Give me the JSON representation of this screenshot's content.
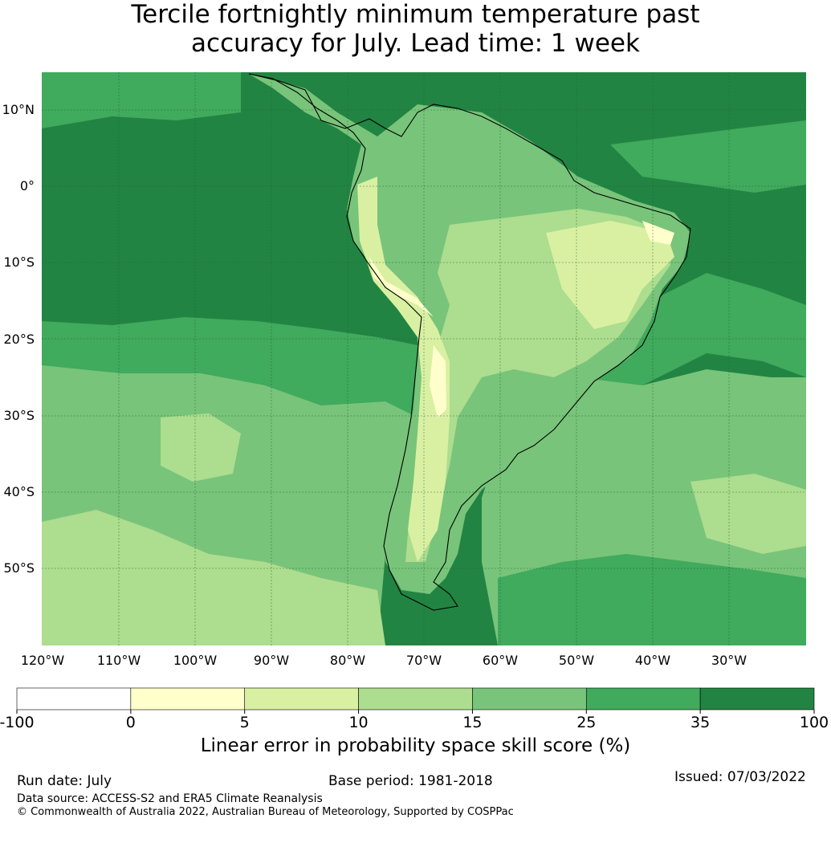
{
  "title": {
    "line1": "Tercile fortnightly minimum temperature past",
    "line2": "accuracy for July. Lead time: 1 week"
  },
  "map": {
    "region": "South America",
    "lat_labels": [
      "10°N",
      "0°",
      "10°S",
      "20°S",
      "30°S",
      "40°S",
      "50°S"
    ],
    "lon_labels": [
      "120°W",
      "110°W",
      "100°W",
      "90°W",
      "80°W",
      "70°W",
      "60°W",
      "50°W",
      "40°W",
      "30°W"
    ],
    "colors": {
      "ocean_high": "#228443",
      "band_25_35": "#40aa5d",
      "band_15_25": "#78c47a",
      "band_10_15": "#addd8e",
      "band_5_10": "#d9f0a3",
      "band_0_5": "#ffffcc",
      "below_0": "#ffffff",
      "coastline": "#000000"
    }
  },
  "colorbar": {
    "ticks": [
      "-100",
      "0",
      "5",
      "10",
      "15",
      "25",
      "35",
      "100"
    ],
    "colors": [
      "#ffffff",
      "#ffffcc",
      "#d9f0a3",
      "#addd8e",
      "#78c47a",
      "#40aa5d",
      "#228443"
    ],
    "label": "Linear error in probability space skill score (%)"
  },
  "footer": {
    "run_date": "Run date: July",
    "base_period": "Base period: 1981-2018",
    "issued": "Issued: 07/03/2022",
    "data_source": "Data source: ACCESS-S2 and ERA5 Climate Reanalysis",
    "copyright": "© Commonwealth of Australia 2022, Australian Bureau of Meteorology, Supported by COSPPac"
  }
}
